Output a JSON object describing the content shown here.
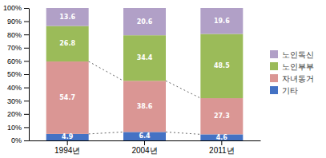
{
  "chart_data": {
    "type": "bar",
    "stacked": true,
    "categories": [
      "1994년",
      "2004년",
      "2011년"
    ],
    "series": [
      {
        "name": "기타",
        "color": "#4472C4",
        "values": [
          4.9,
          6.4,
          4.6
        ]
      },
      {
        "name": "자녀동거",
        "color": "#DA9694",
        "values": [
          54.7,
          38.6,
          27.3
        ]
      },
      {
        "name": "노인부부",
        "color": "#9BBB59",
        "values": [
          26.8,
          34.4,
          48.5
        ]
      },
      {
        "name": "노인독신",
        "color": "#B1A0C7",
        "values": [
          13.6,
          20.6,
          19.6
        ]
      }
    ],
    "ylim": [
      0,
      100
    ],
    "yticks": [
      {
        "value": 0,
        "label": "0%"
      },
      {
        "value": 10,
        "label": "10%"
      },
      {
        "value": 20,
        "label": "20%"
      },
      {
        "value": 30,
        "label": "30%"
      },
      {
        "value": 40,
        "label": "40%"
      },
      {
        "value": 50,
        "label": "50%"
      },
      {
        "value": 60,
        "label": "60%"
      },
      {
        "value": 70,
        "label": "70%"
      },
      {
        "value": 80,
        "label": "80%"
      },
      {
        "value": 90,
        "label": "90%"
      },
      {
        "value": 100,
        "label": "100%"
      }
    ],
    "data_labels": true,
    "grid": false,
    "legend": "right"
  }
}
